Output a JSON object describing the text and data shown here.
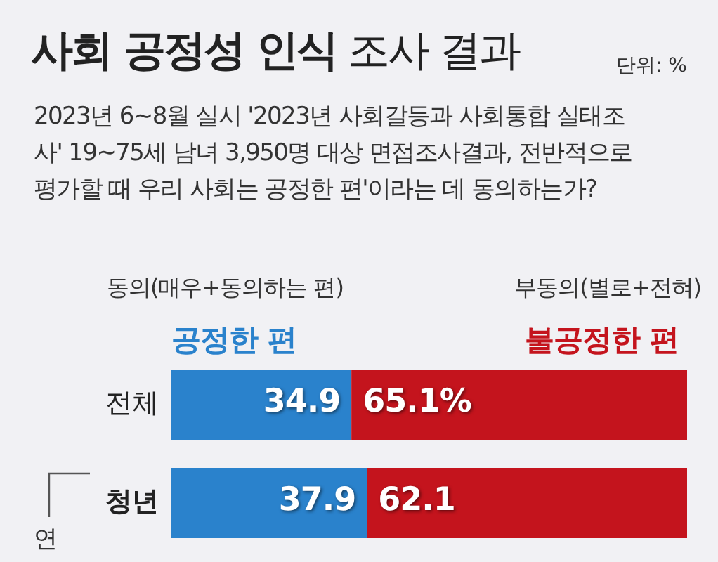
{
  "chart_data": {
    "type": "bar",
    "orientation": "horizontal",
    "stacked": true,
    "title": "**사회 공정성 인식** 조사 결과",
    "subtitle": "2023년 6~8월 실시 '2023년 사회갈등과 사회통합 실태조사' 19~75세 남녀 3,950명 대상 면접조사결과, 전반적으로 평가할 때 우리 사회는 공정한 편'이라는 데 동의하는가?",
    "annotations": [
      "단위: %",
      "동의(매우+동의하는 편)",
      "부동의(별로+전혀)",
      "연"
    ],
    "categories": [
      "전체",
      "청년"
    ],
    "legend": "top",
    "series": [
      {
        "name": "공정한 편",
        "color": "#2a82cc",
        "values": [
          34.9,
          37.9
        ],
        "value_labels": [
          "34.9",
          "37.9"
        ]
      },
      {
        "name": "불공정한 편",
        "color": "#c4141d",
        "values": [
          65.1,
          62.1
        ],
        "value_labels": [
          "65.1%",
          "62.1"
        ]
      }
    ]
  }
}
